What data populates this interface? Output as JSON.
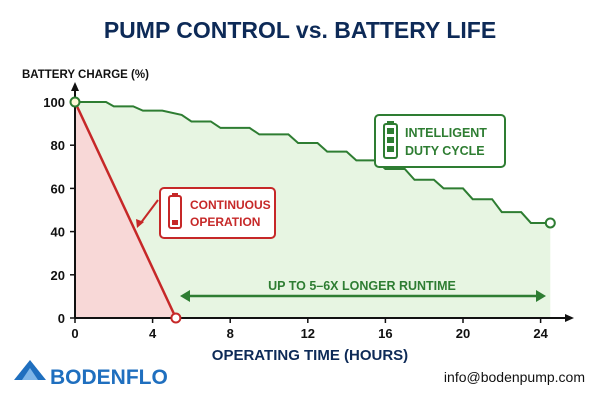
{
  "chart_data": {
    "type": "line",
    "title": "PUMP CONTROL vs. BATTERY LIFE",
    "ylabel": "BATTERY CHARGE (%)",
    "xlabel": "OPERATING TIME (HOURS)",
    "xlim": [
      0,
      25
    ],
    "ylim": [
      0,
      100
    ],
    "xticks": [
      0,
      4,
      8,
      12,
      16,
      20,
      24
    ],
    "yticks": [
      0,
      20,
      40,
      60,
      80,
      100
    ],
    "grid": false,
    "series": [
      {
        "name": "CONTINUOUS OPERATION",
        "color": "#c62828",
        "x": [
          0,
          5.2
        ],
        "y": [
          100,
          0
        ]
      },
      {
        "name": "INTELLIGENT DUTY CYCLE",
        "color": "#2e7d32",
        "x": [
          0,
          1.6,
          2,
          3,
          3.5,
          4.5,
          5.5,
          6,
          7,
          7.5,
          9,
          9.5,
          11,
          11.5,
          12.5,
          13,
          14,
          14.5,
          15.5,
          16,
          17,
          17.5,
          18.5,
          19,
          20,
          20.5,
          21.5,
          22,
          23,
          23.5,
          24.5
        ],
        "y": [
          100,
          100,
          98,
          98,
          96,
          96,
          94,
          91,
          91,
          88,
          88,
          85,
          85,
          81,
          81,
          77,
          77,
          73,
          73,
          69,
          69,
          64,
          64,
          60,
          60,
          55,
          55,
          49,
          49,
          44,
          44
        ]
      }
    ],
    "annotations": {
      "continuous_label": [
        "CONTINUOUS",
        "OPERATION"
      ],
      "duty_label": [
        "INTELLIGENT",
        "DUTY CYCLE"
      ],
      "runtime_label": "UP TO 5–6X LONGER RUNTIME"
    }
  },
  "branding": {
    "logo_text": "BODENFLO",
    "email": "info@bodenpump.com"
  },
  "colors": {
    "title": "#0d2a57",
    "red": "#c62828",
    "green": "#2e7d32",
    "red_fill": "#f9d6d6",
    "green_fill": "#e3f3dd",
    "logo_blue": "#1f6fbf"
  }
}
